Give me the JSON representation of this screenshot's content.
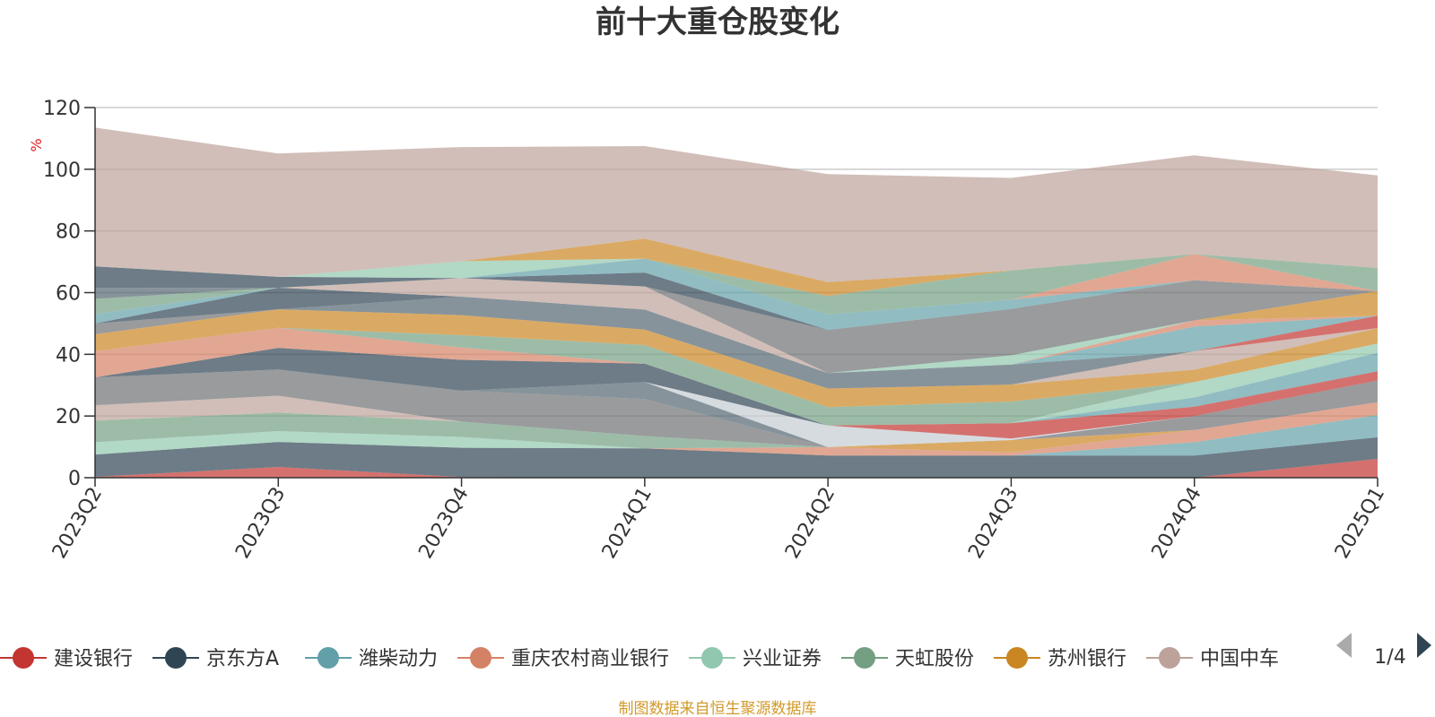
{
  "colors": {
    "series": [
      "#c23531",
      "#2f4554",
      "#61a0a8",
      "#d48265",
      "#91c7ae",
      "#749f83",
      "#ca8622",
      "#bda29a",
      "#6e7074",
      "#546570",
      "#c4ccd3"
    ],
    "axis": "#333333",
    "grid": "#cccccc",
    "title": "#333333",
    "source": "#d19a2b",
    "unit": "#e02020",
    "pager_active": "#2f4554",
    "pager_inactive": "#aaaaaa"
  },
  "chart_data": {
    "type": "area",
    "stacked": true,
    "title": "前十大重仓股变化",
    "ylabel": "%",
    "ylim": [
      0,
      120
    ],
    "yticks": [
      0,
      20,
      40,
      60,
      80,
      100,
      120
    ],
    "grid": true,
    "legend_position": "bottom",
    "categories": [
      "2023Q2",
      "2023Q3",
      "2023Q4",
      "2024Q1",
      "2024Q2",
      "2024Q3",
      "2024Q4",
      "2025Q1"
    ],
    "series": [
      {
        "name": "建设银行",
        "values": [
          0.3,
          3.5,
          0.2,
          0,
          0,
          0,
          0,
          6.1
        ]
      },
      {
        "name": "京东方A",
        "values": [
          7.2,
          8.1,
          9.5,
          9.5,
          7.2,
          7.2,
          7.2,
          7.0
        ]
      },
      {
        "name": "潍柴动力",
        "values": [
          0,
          0,
          0,
          0,
          0,
          0,
          4.3,
          7.2
        ]
      },
      {
        "name": "重庆农村商业银行",
        "values": [
          0,
          0,
          0,
          0,
          2.7,
          1.0,
          4.0,
          4.2
        ]
      },
      {
        "name": "兴业证券",
        "values": [
          4.0,
          3.5,
          3.5,
          0,
          0,
          0,
          0,
          0
        ]
      },
      {
        "name": "天虹股份",
        "values": [
          7.0,
          6.0,
          5.0,
          4.0,
          0,
          0,
          0,
          0
        ]
      },
      {
        "name": "苏州银行",
        "values": [
          0,
          0,
          0,
          0,
          0,
          4.0,
          0,
          0
        ]
      },
      {
        "name": "中国中车",
        "values": [
          5.0,
          5.5,
          0,
          0,
          0,
          0,
          0,
          0
        ]
      },
      {
        "values": [
          9.0,
          8.5,
          10.0,
          12.0,
          0,
          0,
          4.5,
          7.0
        ]
      },
      {
        "values": [
          0,
          0,
          0,
          5.5,
          0,
          0,
          0,
          0
        ]
      },
      {
        "values": [
          0,
          0,
          0,
          0,
          7.0,
          0.5,
          0,
          0
        ]
      },
      {
        "values": [
          0,
          0,
          0,
          0,
          0,
          5.0,
          3.0,
          3.0
        ]
      },
      {
        "values": [
          0,
          7.0,
          10.0,
          6.0,
          0,
          0,
          0,
          0
        ]
      },
      {
        "values": [
          0,
          0,
          0,
          0,
          0,
          0,
          3.0,
          6.0
        ]
      },
      {
        "values": [
          8.5,
          6.5,
          4.0,
          0,
          0,
          0,
          0,
          0
        ]
      },
      {
        "values": [
          0,
          0,
          0,
          0,
          0,
          0,
          5.0,
          3.0
        ]
      },
      {
        "values": [
          0,
          0,
          4.0,
          6.0,
          6.0,
          7.0,
          0,
          0
        ]
      },
      {
        "values": [
          5.5,
          6.0,
          6.5,
          5.0,
          6.0,
          5.5,
          4.0,
          5.0
        ]
      },
      {
        "values": [
          0,
          0,
          0,
          0,
          0,
          0,
          6.0,
          0
        ]
      },
      {
        "values": [
          3.5,
          0,
          0,
          0,
          0,
          0,
          0,
          0
        ]
      },
      {
        "values": [
          0,
          0,
          6.0,
          6.5,
          5.0,
          6.5,
          0,
          0
        ]
      },
      {
        "values": [
          0,
          0,
          0,
          0,
          0,
          0,
          0,
          0
        ]
      },
      {
        "values": [
          0,
          0,
          0,
          0,
          0,
          0,
          0,
          4.0
        ]
      },
      {
        "values": [
          0,
          7.0,
          0,
          0,
          0,
          0,
          0,
          0
        ]
      },
      {
        "values": [
          3.0,
          0,
          0,
          0,
          0,
          0,
          8.0,
          0
        ]
      },
      {
        "values": [
          0,
          0,
          0,
          0,
          0,
          0,
          2.0,
          0
        ]
      },
      {
        "values": [
          0,
          0,
          0,
          0,
          0,
          3.0,
          0,
          0
        ]
      },
      {
        "values": [
          5.0,
          0,
          0,
          0,
          0,
          0,
          0,
          0
        ]
      },
      {
        "values": [
          0,
          0,
          0,
          0,
          0,
          0,
          0,
          8.0
        ]
      },
      {
        "values": [
          0,
          0,
          6.0,
          7.5,
          0,
          0,
          0,
          0
        ]
      },
      {
        "values": [
          0,
          0,
          0,
          0,
          14.0,
          15.0,
          13.0,
          0
        ]
      },
      {
        "values": [
          3.5,
          0,
          0,
          0,
          0,
          0,
          0,
          0
        ]
      },
      {
        "values": [
          0,
          0,
          0,
          0,
          0,
          0,
          0,
          0
        ]
      },
      {
        "values": [
          0,
          0,
          0,
          0,
          0,
          0,
          0,
          0
        ]
      },
      {
        "values": [
          7.0,
          3.5,
          0,
          4.5,
          0,
          0,
          0,
          0
        ]
      },
      {
        "values": [
          0,
          0,
          0,
          4.5,
          5.0,
          3.0,
          0,
          0
        ]
      },
      {
        "values": [
          0,
          0,
          0,
          0,
          0,
          0,
          8.5,
          0
        ]
      },
      {
        "values": [
          0,
          0,
          5.5,
          0,
          0,
          0,
          0,
          0
        ]
      },
      {
        "values": [
          0,
          0,
          0,
          0,
          6.0,
          9.5,
          0,
          7.5
        ]
      },
      {
        "values": [
          0,
          0,
          0,
          6.5,
          4.5,
          0,
          0,
          0
        ]
      },
      {
        "values": [
          45.0,
          40.0,
          37.0,
          30.0,
          35.0,
          30.0,
          32.0,
          30.0
        ]
      }
    ],
    "legend_page": "1/4"
  },
  "source_note": "制图数据来自恒生聚源数据库"
}
